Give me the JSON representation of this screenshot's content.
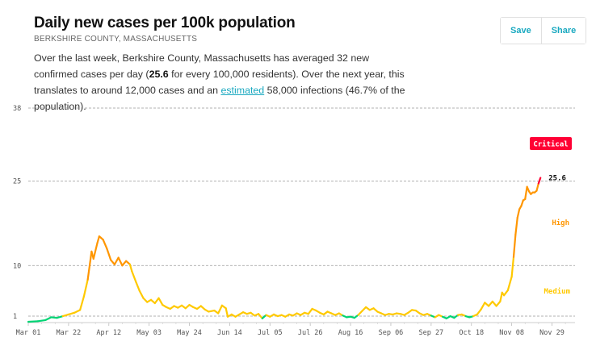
{
  "header": {
    "title": "Daily new cases per 100k population",
    "subtitle": "BERKSHIRE COUNTY, MASSACHUSETTS",
    "desc_part1": "Over the last week, Berkshire County, Massachusetts has averaged 32 new confirmed cases per day (",
    "desc_bold": "25.6",
    "desc_part2": " for every 100,000 residents). Over the next year, this translates to around 12,000 cases and an ",
    "desc_link": "estimated",
    "desc_part3": " 58,000 infections (46.7% of the population)."
  },
  "toolbar": {
    "save_label": "Save",
    "share_label": "Share"
  },
  "colors": {
    "low": "#00d474",
    "medium": "#ffc900",
    "high": "#ff9600",
    "critical": "#ff0034",
    "grid": "#999999",
    "axis_text": "#555555"
  },
  "chart_data": {
    "type": "line",
    "title": "Daily new cases per 100k population",
    "ylim": [
      0,
      38
    ],
    "yticks": [
      1,
      10,
      25,
      38
    ],
    "x_start": "2020-03-01",
    "x_end": "2020-12-11",
    "xticks": [
      {
        "date": "2020-03-01",
        "label": "Mar 01"
      },
      {
        "date": "2020-03-22",
        "label": "Mar 22"
      },
      {
        "date": "2020-04-12",
        "label": "Apr 12"
      },
      {
        "date": "2020-05-03",
        "label": "May 03"
      },
      {
        "date": "2020-05-24",
        "label": "May 24"
      },
      {
        "date": "2020-06-14",
        "label": "Jun 14"
      },
      {
        "date": "2020-07-05",
        "label": "Jul 05"
      },
      {
        "date": "2020-07-26",
        "label": "Jul 26"
      },
      {
        "date": "2020-08-16",
        "label": "Aug 16"
      },
      {
        "date": "2020-09-06",
        "label": "Sep 06"
      },
      {
        "date": "2020-09-27",
        "label": "Sep 27"
      },
      {
        "date": "2020-10-18",
        "label": "Oct 18"
      },
      {
        "date": "2020-11-08",
        "label": "Nov 08"
      },
      {
        "date": "2020-11-29",
        "label": "Nov 29"
      }
    ],
    "zone_labels": [
      {
        "label": "Critical",
        "color": "#ff0034"
      },
      {
        "label": "High",
        "color": "#ff9600"
      },
      {
        "label": "Medium",
        "color": "#ffc900"
      }
    ],
    "last_value_label": "25.6",
    "series": [
      {
        "points": [
          [
            "2020-03-01",
            0.0
          ],
          [
            "2020-03-06",
            0.1
          ],
          [
            "2020-03-10",
            0.3
          ],
          [
            "2020-03-13",
            0.8
          ],
          [
            "2020-03-16",
            0.7
          ],
          [
            "2020-03-19",
            1.0
          ],
          [
            "2020-03-22",
            1.3
          ],
          [
            "2020-03-25",
            1.6
          ],
          [
            "2020-03-28",
            2.1
          ],
          [
            "2020-03-30",
            4.5
          ],
          [
            "2020-04-01",
            7.5
          ],
          [
            "2020-04-03",
            12.5
          ],
          [
            "2020-04-04",
            11.2
          ],
          [
            "2020-04-06",
            14.0
          ],
          [
            "2020-04-07",
            15.2
          ],
          [
            "2020-04-09",
            14.6
          ],
          [
            "2020-04-11",
            13.0
          ],
          [
            "2020-04-13",
            11.0
          ],
          [
            "2020-04-15",
            10.2
          ],
          [
            "2020-04-17",
            11.4
          ],
          [
            "2020-04-19",
            10.0
          ],
          [
            "2020-04-21",
            10.8
          ],
          [
            "2020-04-23",
            10.2
          ],
          [
            "2020-04-24",
            9.0
          ],
          [
            "2020-04-26",
            7.2
          ],
          [
            "2020-04-28",
            5.5
          ],
          [
            "2020-04-30",
            4.2
          ],
          [
            "2020-05-02",
            3.5
          ],
          [
            "2020-05-04",
            3.9
          ],
          [
            "2020-05-06",
            3.3
          ],
          [
            "2020-05-08",
            4.2
          ],
          [
            "2020-05-10",
            3.0
          ],
          [
            "2020-05-12",
            2.6
          ],
          [
            "2020-05-14",
            2.3
          ],
          [
            "2020-05-16",
            2.8
          ],
          [
            "2020-05-18",
            2.5
          ],
          [
            "2020-05-20",
            2.9
          ],
          [
            "2020-05-22",
            2.4
          ],
          [
            "2020-05-24",
            3.0
          ],
          [
            "2020-05-26",
            2.6
          ],
          [
            "2020-05-28",
            2.3
          ],
          [
            "2020-05-30",
            2.8
          ],
          [
            "2020-06-01",
            2.2
          ],
          [
            "2020-06-03",
            1.8
          ],
          [
            "2020-06-06",
            2.0
          ],
          [
            "2020-06-08",
            1.5
          ],
          [
            "2020-06-10",
            2.9
          ],
          [
            "2020-06-12",
            2.4
          ],
          [
            "2020-06-13",
            0.9
          ],
          [
            "2020-06-15",
            1.3
          ],
          [
            "2020-06-17",
            0.9
          ],
          [
            "2020-06-19",
            1.3
          ],
          [
            "2020-06-21",
            1.7
          ],
          [
            "2020-06-23",
            1.4
          ],
          [
            "2020-06-25",
            1.6
          ],
          [
            "2020-06-27",
            1.1
          ],
          [
            "2020-06-29",
            1.4
          ],
          [
            "2020-07-01",
            0.6
          ],
          [
            "2020-07-03",
            1.2
          ],
          [
            "2020-07-05",
            0.9
          ],
          [
            "2020-07-07",
            1.3
          ],
          [
            "2020-07-09",
            1.0
          ],
          [
            "2020-07-11",
            1.2
          ],
          [
            "2020-07-13",
            0.9
          ],
          [
            "2020-07-15",
            1.3
          ],
          [
            "2020-07-17",
            1.1
          ],
          [
            "2020-07-19",
            1.5
          ],
          [
            "2020-07-21",
            1.2
          ],
          [
            "2020-07-23",
            1.6
          ],
          [
            "2020-07-25",
            1.4
          ],
          [
            "2020-07-27",
            2.3
          ],
          [
            "2020-07-29",
            2.0
          ],
          [
            "2020-07-31",
            1.6
          ],
          [
            "2020-08-02",
            1.3
          ],
          [
            "2020-08-04",
            1.8
          ],
          [
            "2020-08-06",
            1.5
          ],
          [
            "2020-08-08",
            1.2
          ],
          [
            "2020-08-10",
            1.5
          ],
          [
            "2020-08-12",
            1.1
          ],
          [
            "2020-08-14",
            0.8
          ],
          [
            "2020-08-16",
            0.9
          ],
          [
            "2020-08-18",
            0.7
          ],
          [
            "2020-08-20",
            1.2
          ],
          [
            "2020-08-22",
            1.9
          ],
          [
            "2020-08-24",
            2.6
          ],
          [
            "2020-08-26",
            2.1
          ],
          [
            "2020-08-28",
            2.4
          ],
          [
            "2020-08-30",
            1.8
          ],
          [
            "2020-09-01",
            1.5
          ],
          [
            "2020-09-03",
            1.2
          ],
          [
            "2020-09-05",
            1.4
          ],
          [
            "2020-09-07",
            1.3
          ],
          [
            "2020-09-09",
            1.5
          ],
          [
            "2020-09-11",
            1.4
          ],
          [
            "2020-09-13",
            1.2
          ],
          [
            "2020-09-15",
            1.6
          ],
          [
            "2020-09-17",
            2.1
          ],
          [
            "2020-09-19",
            2.0
          ],
          [
            "2020-09-21",
            1.5
          ],
          [
            "2020-09-23",
            1.2
          ],
          [
            "2020-09-25",
            1.4
          ],
          [
            "2020-09-27",
            1.1
          ],
          [
            "2020-09-29",
            0.8
          ],
          [
            "2020-10-01",
            1.2
          ],
          [
            "2020-10-03",
            0.9
          ],
          [
            "2020-10-05",
            0.6
          ],
          [
            "2020-10-07",
            1.0
          ],
          [
            "2020-10-09",
            0.7
          ],
          [
            "2020-10-11",
            1.2
          ],
          [
            "2020-10-13",
            1.3
          ],
          [
            "2020-10-15",
            1.0
          ],
          [
            "2020-10-17",
            0.8
          ],
          [
            "2020-10-19",
            1.0
          ],
          [
            "2020-10-21",
            1.3
          ],
          [
            "2020-10-23",
            2.2
          ],
          [
            "2020-10-25",
            3.4
          ],
          [
            "2020-10-27",
            2.8
          ],
          [
            "2020-10-29",
            3.6
          ],
          [
            "2020-10-31",
            2.8
          ],
          [
            "2020-11-02",
            3.6
          ],
          [
            "2020-11-03",
            5.2
          ],
          [
            "2020-11-04",
            4.7
          ],
          [
            "2020-11-06",
            5.6
          ],
          [
            "2020-11-08",
            8.0
          ],
          [
            "2020-11-09",
            11.5
          ],
          [
            "2020-11-10",
            15.5
          ],
          [
            "2020-11-11",
            18.5
          ],
          [
            "2020-11-12",
            20.0
          ],
          [
            "2020-11-13",
            20.6
          ],
          [
            "2020-11-14",
            21.6
          ],
          [
            "2020-11-15",
            21.8
          ],
          [
            "2020-11-16",
            24.0
          ],
          [
            "2020-11-17",
            23.2
          ],
          [
            "2020-11-18",
            22.7
          ],
          [
            "2020-11-19",
            23.0
          ],
          [
            "2020-11-20",
            23.0
          ],
          [
            "2020-11-21",
            23.3
          ],
          [
            "2020-11-22",
            24.6
          ],
          [
            "2020-11-23",
            25.6
          ]
        ]
      }
    ]
  }
}
